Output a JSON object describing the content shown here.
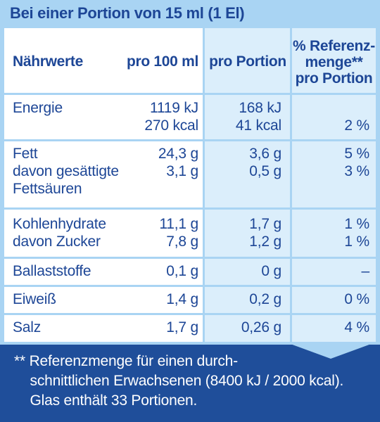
{
  "title": "Bei einer Portion von 15 ml (1 El)",
  "headers": {
    "nutrient": "Nährwerte",
    "per100_line1": "pro 100 ml",
    "portion": "pro Portion",
    "ref_line1": "% Referenz-",
    "ref_line2": "menge**",
    "ref_line3": "pro Portion"
  },
  "rows": [
    {
      "label": "Energie",
      "per100": "1119 kJ\n270 kcal",
      "portion": "168 kJ\n41 kcal",
      "ref": "\n2 %"
    },
    {
      "label": "Fett\ndavon gesättigte\nFettsäuren",
      "per100": "24,3 g\n3,1 g",
      "portion": "3,6 g\n0,5 g",
      "ref": "5 %\n3 %"
    },
    {
      "label": "Kohlenhydrate\ndavon Zucker",
      "per100": "11,1 g\n7,8 g",
      "portion": "1,7 g\n1,2 g",
      "ref": "1 %\n1 %"
    },
    {
      "label": "Ballaststoffe",
      "per100": "0,1 g",
      "portion": "0 g",
      "ref": "–"
    },
    {
      "label": "Eiweiß",
      "per100": "1,4 g",
      "portion": "0,2 g",
      "ref": "0 %"
    },
    {
      "label": "Salz",
      "per100": "1,7 g",
      "portion": "0,26 g",
      "ref": "4 %"
    }
  ],
  "footnote": "** Referenzmenge für einen durch-\n    schnittlichen Erwachsenen (8400 kJ / 2000 kcal).\n    Glas enthält 33 Portionen.",
  "colors": {
    "navy": "#1f4e9a",
    "text": "#1d4696",
    "light_blue": "#a9d4f3",
    "pale_blue": "#dbeefb"
  }
}
